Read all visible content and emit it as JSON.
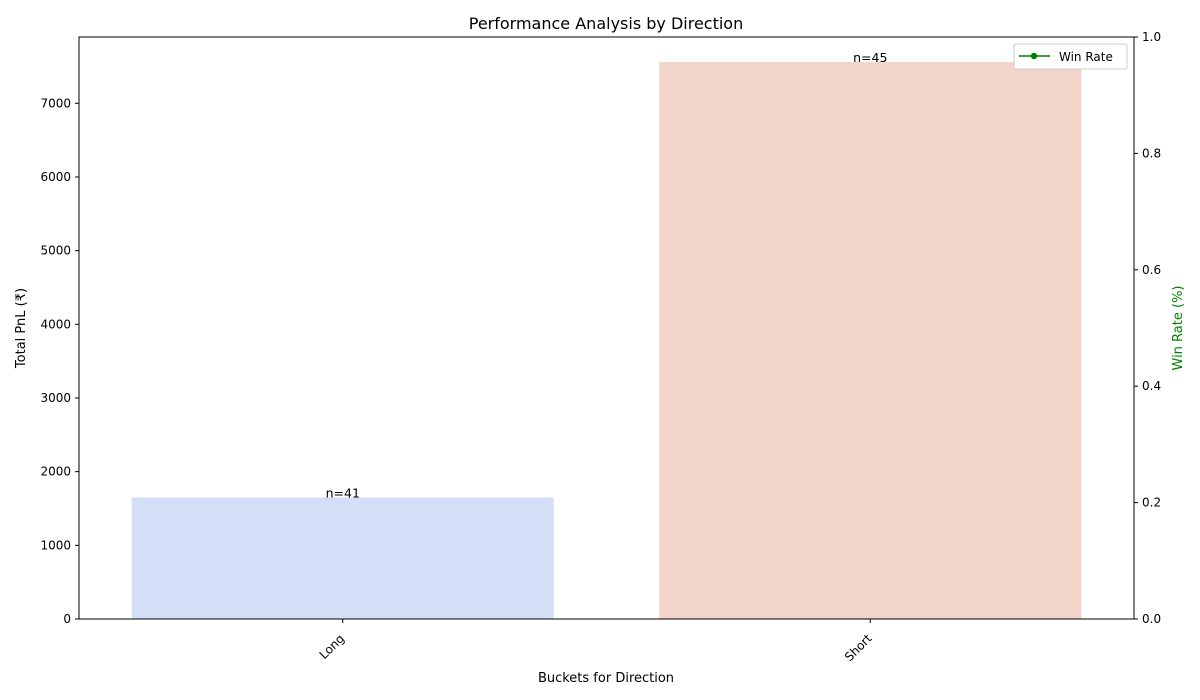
{
  "chart_data": {
    "type": "bar",
    "title": "Performance Analysis by Direction",
    "xlabel": "Buckets for Direction",
    "ylabel": "Total PnL (₹)",
    "y2label": "Win Rate (%)",
    "categories": [
      "Long",
      "Short"
    ],
    "values": [
      1650,
      7560
    ],
    "counts": [
      "n=41",
      "n=45"
    ],
    "bar_colors": [
      "#d4dff7",
      "#f2d5ca"
    ],
    "ylim": [
      0,
      7900
    ],
    "yticks": [
      0,
      1000,
      2000,
      3000,
      4000,
      5000,
      6000,
      7000
    ],
    "y2lim": [
      0,
      1.0
    ],
    "y2ticks": [
      "0.0",
      "0.2",
      "0.4",
      "0.6",
      "0.8",
      "1.0"
    ],
    "y2color": "#008000",
    "legend": {
      "label": "Win Rate",
      "placement": "top-right"
    }
  }
}
